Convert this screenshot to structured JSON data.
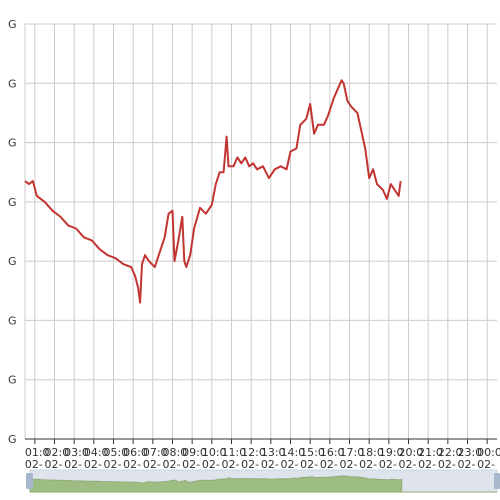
{
  "chart_data": {
    "type": "line",
    "title": "",
    "xlabel": "",
    "ylabel": "",
    "grid": true,
    "ylim": [
      0,
      7
    ],
    "yticks": [
      {
        "v": 0,
        "label": "G"
      },
      {
        "v": 1,
        "label": "G"
      },
      {
        "v": 2,
        "label": "G"
      },
      {
        "v": 3,
        "label": "G"
      },
      {
        "v": 4,
        "label": "G"
      },
      {
        "v": 5,
        "label": "G"
      },
      {
        "v": 6,
        "label": "G"
      },
      {
        "v": 7,
        "label": "G"
      }
    ],
    "xlim": [
      0.5,
      24.5
    ],
    "xticks": [
      {
        "v": 1,
        "time": "01:0",
        "date": "02-"
      },
      {
        "v": 2,
        "time": "02:0",
        "date": "02-"
      },
      {
        "v": 3,
        "time": "03:0",
        "date": "02-"
      },
      {
        "v": 4,
        "time": "04:0",
        "date": "02-"
      },
      {
        "v": 5,
        "time": "05:0",
        "date": "02-"
      },
      {
        "v": 6,
        "time": "06:0",
        "date": "02-"
      },
      {
        "v": 7,
        "time": "07:0",
        "date": "02-"
      },
      {
        "v": 8,
        "time": "08:0",
        "date": "02-"
      },
      {
        "v": 9,
        "time": "09:0",
        "date": "02-"
      },
      {
        "v": 10,
        "time": "10:0",
        "date": "02-"
      },
      {
        "v": 11,
        "time": "11:0",
        "date": "02-"
      },
      {
        "v": 12,
        "time": "12:0",
        "date": "02-"
      },
      {
        "v": 13,
        "time": "13:0",
        "date": "02-"
      },
      {
        "v": 14,
        "time": "14:0",
        "date": "02-"
      },
      {
        "v": 15,
        "time": "15:0",
        "date": "02-"
      },
      {
        "v": 16,
        "time": "16:0",
        "date": "02-"
      },
      {
        "v": 17,
        "time": "17:0",
        "date": "02-"
      },
      {
        "v": 18,
        "time": "18:0",
        "date": "02-"
      },
      {
        "v": 19,
        "time": "19:0",
        "date": "02-"
      },
      {
        "v": 20,
        "time": "20:0",
        "date": "02-"
      },
      {
        "v": 21,
        "time": "21:0",
        "date": "02-"
      },
      {
        "v": 22,
        "time": "22:0",
        "date": "02-"
      },
      {
        "v": 23,
        "time": "23:0",
        "date": "02-"
      },
      {
        "v": 24,
        "time": "00:0",
        "date": "02-"
      }
    ],
    "series": [
      {
        "color": "#c23531",
        "points": [
          [
            0.5,
            4.35
          ],
          [
            0.7,
            4.3
          ],
          [
            0.9,
            4.35
          ],
          [
            1.1,
            4.1
          ],
          [
            1.5,
            4.0
          ],
          [
            1.9,
            3.85
          ],
          [
            2.3,
            3.75
          ],
          [
            2.7,
            3.6
          ],
          [
            3.1,
            3.55
          ],
          [
            3.5,
            3.4
          ],
          [
            3.9,
            3.35
          ],
          [
            4.3,
            3.2
          ],
          [
            4.7,
            3.1
          ],
          [
            5.1,
            3.05
          ],
          [
            5.5,
            2.95
          ],
          [
            5.9,
            2.9
          ],
          [
            6.1,
            2.75
          ],
          [
            6.25,
            2.55
          ],
          [
            6.35,
            2.3
          ],
          [
            6.45,
            2.95
          ],
          [
            6.6,
            3.1
          ],
          [
            6.8,
            3.0
          ],
          [
            7.1,
            2.9
          ],
          [
            7.4,
            3.2
          ],
          [
            7.6,
            3.4
          ],
          [
            7.8,
            3.8
          ],
          [
            8.0,
            3.85
          ],
          [
            8.1,
            3.0
          ],
          [
            8.3,
            3.35
          ],
          [
            8.5,
            3.75
          ],
          [
            8.6,
            3.0
          ],
          [
            8.7,
            2.9
          ],
          [
            8.9,
            3.1
          ],
          [
            9.1,
            3.55
          ],
          [
            9.4,
            3.9
          ],
          [
            9.7,
            3.8
          ],
          [
            10.0,
            3.95
          ],
          [
            10.2,
            4.3
          ],
          [
            10.4,
            4.5
          ],
          [
            10.6,
            4.5
          ],
          [
            10.75,
            5.1
          ],
          [
            10.85,
            4.6
          ],
          [
            11.1,
            4.6
          ],
          [
            11.3,
            4.75
          ],
          [
            11.5,
            4.65
          ],
          [
            11.7,
            4.75
          ],
          [
            11.9,
            4.6
          ],
          [
            12.1,
            4.65
          ],
          [
            12.3,
            4.55
          ],
          [
            12.6,
            4.6
          ],
          [
            12.9,
            4.4
          ],
          [
            13.2,
            4.55
          ],
          [
            13.5,
            4.6
          ],
          [
            13.8,
            4.55
          ],
          [
            14.0,
            4.85
          ],
          [
            14.3,
            4.9
          ],
          [
            14.5,
            5.3
          ],
          [
            14.8,
            5.4
          ],
          [
            15.0,
            5.65
          ],
          [
            15.2,
            5.15
          ],
          [
            15.4,
            5.3
          ],
          [
            15.7,
            5.3
          ],
          [
            15.9,
            5.45
          ],
          [
            16.2,
            5.75
          ],
          [
            16.4,
            5.9
          ],
          [
            16.6,
            6.05
          ],
          [
            16.7,
            6.0
          ],
          [
            16.9,
            5.7
          ],
          [
            17.1,
            5.6
          ],
          [
            17.4,
            5.5
          ],
          [
            17.6,
            5.2
          ],
          [
            17.8,
            4.9
          ],
          [
            18.0,
            4.4
          ],
          [
            18.2,
            4.55
          ],
          [
            18.4,
            4.3
          ],
          [
            18.7,
            4.2
          ],
          [
            18.9,
            4.05
          ],
          [
            19.1,
            4.3
          ],
          [
            19.3,
            4.2
          ],
          [
            19.5,
            4.1
          ],
          [
            19.6,
            4.35
          ]
        ]
      }
    ],
    "zoom_window": [
      0,
      100
    ]
  }
}
